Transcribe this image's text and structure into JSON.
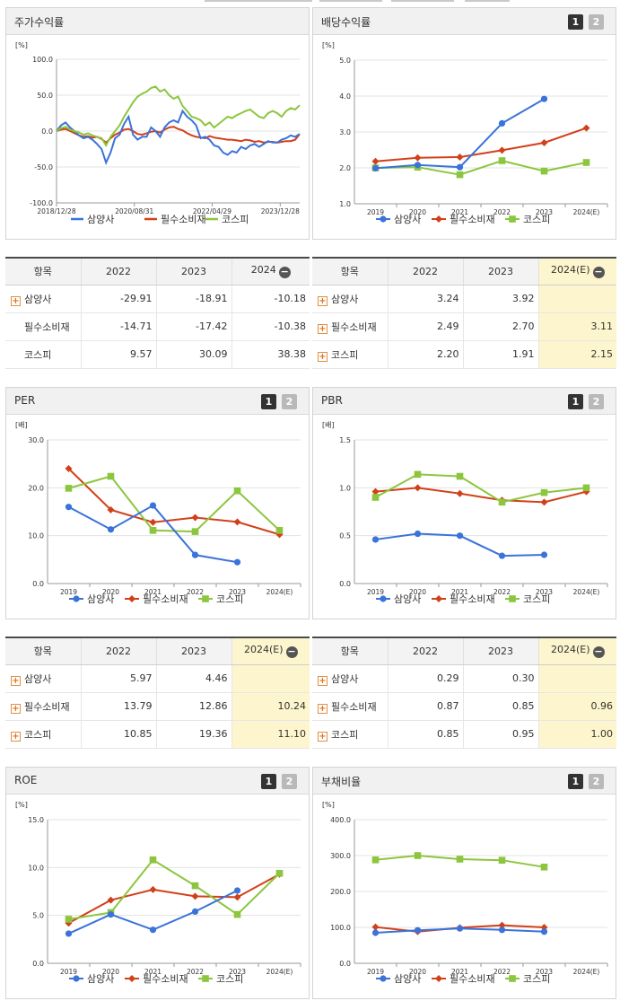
{
  "colors": {
    "samyang": "#3a73d9",
    "food": "#d2401a",
    "kospi": "#8cc63e",
    "grid": "#e3e3e3"
  },
  "legend": [
    "삼양사",
    "필수소비재",
    "코스피"
  ],
  "panels": {
    "stock": {
      "title": "주가수익률"
    },
    "dividend": {
      "title": "배당수익률",
      "page1": "1",
      "page2": "2"
    },
    "per": {
      "title": "PER",
      "page1": "1",
      "page2": "2"
    },
    "pbr": {
      "title": "PBR",
      "page1": "1",
      "page2": "2"
    },
    "roe": {
      "title": "ROE",
      "page1": "1",
      "page2": "2"
    },
    "debt": {
      "title": "부채비율",
      "page1": "1",
      "page2": "2"
    }
  },
  "tables": {
    "stock": {
      "headers": [
        "항목",
        "2022",
        "2023",
        "2024"
      ],
      "rows": [
        {
          "label": "삼양사",
          "plus": true,
          "v": [
            "-29.91",
            "-18.91",
            "-10.18"
          ]
        },
        {
          "label": "필수소비재",
          "plus": false,
          "v": [
            "-14.71",
            "-17.42",
            "-10.38"
          ]
        },
        {
          "label": "코스피",
          "plus": false,
          "v": [
            "9.57",
            "30.09",
            "38.38"
          ]
        }
      ]
    },
    "dividend": {
      "headers": [
        "항목",
        "2022",
        "2023",
        "2024(E)"
      ],
      "rows": [
        {
          "label": "삼양사",
          "plus": true,
          "v": [
            "3.24",
            "3.92",
            ""
          ]
        },
        {
          "label": "필수소비재",
          "plus": true,
          "v": [
            "2.49",
            "2.70",
            "3.11"
          ]
        },
        {
          "label": "코스피",
          "plus": true,
          "v": [
            "2.20",
            "1.91",
            "2.15"
          ]
        }
      ]
    },
    "per": {
      "headers": [
        "항목",
        "2022",
        "2023",
        "2024(E)"
      ],
      "rows": [
        {
          "label": "삼양사",
          "plus": true,
          "v": [
            "5.97",
            "4.46",
            ""
          ]
        },
        {
          "label": "필수소비재",
          "plus": true,
          "v": [
            "13.79",
            "12.86",
            "10.24"
          ]
        },
        {
          "label": "코스피",
          "plus": true,
          "v": [
            "10.85",
            "19.36",
            "11.10"
          ]
        }
      ]
    },
    "pbr": {
      "headers": [
        "항목",
        "2022",
        "2023",
        "2024(E)"
      ],
      "rows": [
        {
          "label": "삼양사",
          "plus": true,
          "v": [
            "0.29",
            "0.30",
            ""
          ]
        },
        {
          "label": "필수소비재",
          "plus": true,
          "v": [
            "0.87",
            "0.85",
            "0.96"
          ]
        },
        {
          "label": "코스피",
          "plus": true,
          "v": [
            "0.85",
            "0.95",
            "1.00"
          ]
        }
      ]
    }
  },
  "chart_data": [
    {
      "id": "stock",
      "type": "line",
      "title": "주가수익률",
      "unit": "[%]",
      "x_ticks": [
        "2018/12/28",
        "2020/08/31",
        "2022/04/29",
        "2023/12/28"
      ],
      "ylim": [
        -100,
        100
      ],
      "y_ticks": [
        "100.0",
        "50.0",
        "0.0",
        "-50.0",
        "-100.0"
      ],
      "series": [
        {
          "name": "삼양사",
          "values": [
            0,
            8,
            12,
            5,
            0,
            -6,
            -10,
            -8,
            -12,
            -18,
            -25,
            -44,
            -30,
            -10,
            -5,
            10,
            20,
            -5,
            -12,
            -8,
            -8,
            5,
            0,
            -8,
            5,
            12,
            15,
            12,
            28,
            20,
            15,
            8,
            -10,
            -8,
            -12,
            -20,
            -22,
            -30,
            -33,
            -28,
            -30,
            -22,
            -25,
            -20,
            -18,
            -22,
            -18,
            -14,
            -16,
            -16,
            -12,
            -10,
            -6,
            -8,
            -4
          ]
        },
        {
          "name": "필수소비재",
          "values": [
            0,
            2,
            3,
            0,
            -3,
            -6,
            -8,
            -7,
            -9,
            -8,
            -11,
            -16,
            -10,
            -5,
            -2,
            2,
            3,
            0,
            -4,
            -5,
            -3,
            -1,
            0,
            -2,
            2,
            5,
            6,
            3,
            1,
            -3,
            -6,
            -8,
            -9,
            -10,
            -7,
            -9,
            -10,
            -11,
            -12,
            -12,
            -13,
            -14,
            -12,
            -13,
            -15,
            -14,
            -16,
            -15,
            -15,
            -16,
            -15,
            -14,
            -14,
            -12,
            -4
          ]
        },
        {
          "name": "코스피",
          "values": [
            0,
            4,
            6,
            2,
            0,
            -2,
            -5,
            -3,
            -6,
            -8,
            -10,
            -20,
            -8,
            0,
            8,
            20,
            30,
            40,
            48,
            52,
            55,
            60,
            62,
            55,
            58,
            50,
            45,
            48,
            35,
            28,
            20,
            18,
            15,
            8,
            12,
            5,
            10,
            15,
            20,
            18,
            22,
            25,
            28,
            30,
            25,
            20,
            18,
            25,
            28,
            25,
            20,
            28,
            32,
            30,
            36
          ]
        }
      ]
    },
    {
      "id": "dividend",
      "type": "line",
      "title": "배당수익률",
      "unit": "[%]",
      "categories": [
        "2019",
        "2020",
        "2021",
        "2022",
        "2023",
        "2024(E)"
      ],
      "ylim": [
        1,
        5
      ],
      "y_ticks": [
        "5.0",
        "4.0",
        "3.0",
        "2.0",
        "1.0"
      ],
      "series": [
        {
          "name": "삼양사",
          "values": [
            1.99,
            2.08,
            2.02,
            3.24,
            3.92,
            null
          ]
        },
        {
          "name": "필수소비재",
          "values": [
            2.18,
            2.28,
            2.3,
            2.49,
            2.7,
            3.11
          ]
        },
        {
          "name": "코스피",
          "values": [
            2.0,
            2.02,
            1.81,
            2.2,
            1.91,
            2.15
          ]
        }
      ]
    },
    {
      "id": "per",
      "type": "line",
      "title": "PER",
      "unit": "[배]",
      "categories": [
        "2019",
        "2020",
        "2021",
        "2022",
        "2023",
        "2024(E)"
      ],
      "ylim": [
        0,
        30
      ],
      "y_ticks": [
        "30.0",
        "20.0",
        "10.0",
        "0.0"
      ],
      "series": [
        {
          "name": "삼양사",
          "values": [
            16.0,
            11.3,
            16.3,
            5.97,
            4.46,
            null
          ]
        },
        {
          "name": "필수소비재",
          "values": [
            24.0,
            15.4,
            12.8,
            13.79,
            12.86,
            10.24
          ]
        },
        {
          "name": "코스피",
          "values": [
            19.9,
            22.4,
            11.1,
            10.85,
            19.36,
            11.1
          ]
        }
      ]
    },
    {
      "id": "pbr",
      "type": "line",
      "title": "PBR",
      "unit": "[배]",
      "categories": [
        "2019",
        "2020",
        "2021",
        "2022",
        "2023",
        "2024(E)"
      ],
      "ylim": [
        0,
        1.5
      ],
      "y_ticks": [
        "1.5",
        "1.0",
        "0.5",
        "0.0"
      ],
      "series": [
        {
          "name": "삼양사",
          "values": [
            0.46,
            0.52,
            0.5,
            0.29,
            0.3,
            null
          ]
        },
        {
          "name": "필수소비재",
          "values": [
            0.96,
            1.0,
            0.94,
            0.87,
            0.85,
            0.96
          ]
        },
        {
          "name": "코스피",
          "values": [
            0.9,
            1.14,
            1.12,
            0.85,
            0.95,
            1.0
          ]
        }
      ]
    },
    {
      "id": "roe",
      "type": "line",
      "title": "ROE",
      "unit": "[%]",
      "categories": [
        "2019",
        "2020",
        "2021",
        "2022",
        "2023",
        "2024(E)"
      ],
      "ylim": [
        0,
        15
      ],
      "y_ticks": [
        "15.0",
        "10.0",
        "5.0",
        "0.0"
      ],
      "series": [
        {
          "name": "삼양사",
          "values": [
            3.1,
            5.1,
            3.5,
            5.4,
            7.6,
            null
          ]
        },
        {
          "name": "필수소비재",
          "values": [
            4.2,
            6.6,
            7.7,
            7.0,
            6.9,
            9.3
          ]
        },
        {
          "name": "코스피",
          "values": [
            4.6,
            5.3,
            10.8,
            8.1,
            5.1,
            9.4
          ]
        }
      ]
    },
    {
      "id": "debt",
      "type": "line",
      "title": "부채비율",
      "unit": "[%]",
      "categories": [
        "2019",
        "2020",
        "2021",
        "2022",
        "2023",
        "2024(E)"
      ],
      "ylim": [
        0,
        400
      ],
      "y_ticks": [
        "400.0",
        "300.0",
        "200.0",
        "100.0",
        "0.0"
      ],
      "series": [
        {
          "name": "삼양사",
          "values": [
            85,
            92,
            97,
            93,
            88,
            null
          ]
        },
        {
          "name": "필수소비재",
          "values": [
            101,
            88,
            99,
            106,
            100,
            null
          ]
        },
        {
          "name": "코스피",
          "values": [
            288,
            300,
            290,
            287,
            268,
            null
          ]
        }
      ]
    }
  ]
}
